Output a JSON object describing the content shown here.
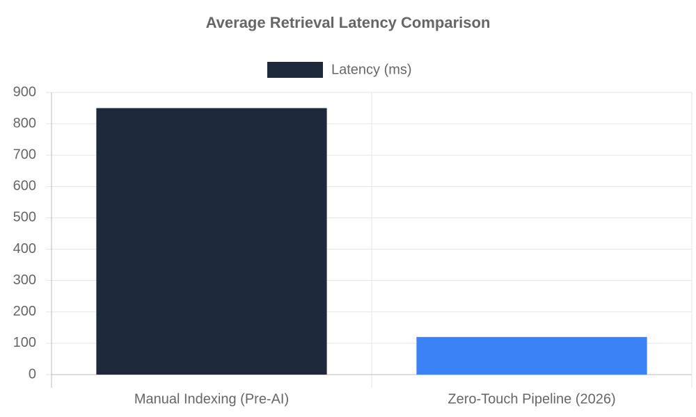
{
  "chart_data": {
    "type": "bar",
    "title": "Average Retrieval Latency Comparison",
    "categories": [
      "Manual Indexing (Pre-AI)",
      "Zero-Touch Pipeline (2026)"
    ],
    "series": [
      {
        "name": "Latency (ms)",
        "color": "#1e293b",
        "colors": [
          "#1e293b",
          "#3b82f6"
        ],
        "values": [
          850,
          120
        ]
      }
    ],
    "ylim": [
      0,
      900
    ],
    "yticks": [
      0,
      100,
      200,
      300,
      400,
      500,
      600,
      700,
      800,
      900
    ],
    "grid": true,
    "legend": "top"
  }
}
